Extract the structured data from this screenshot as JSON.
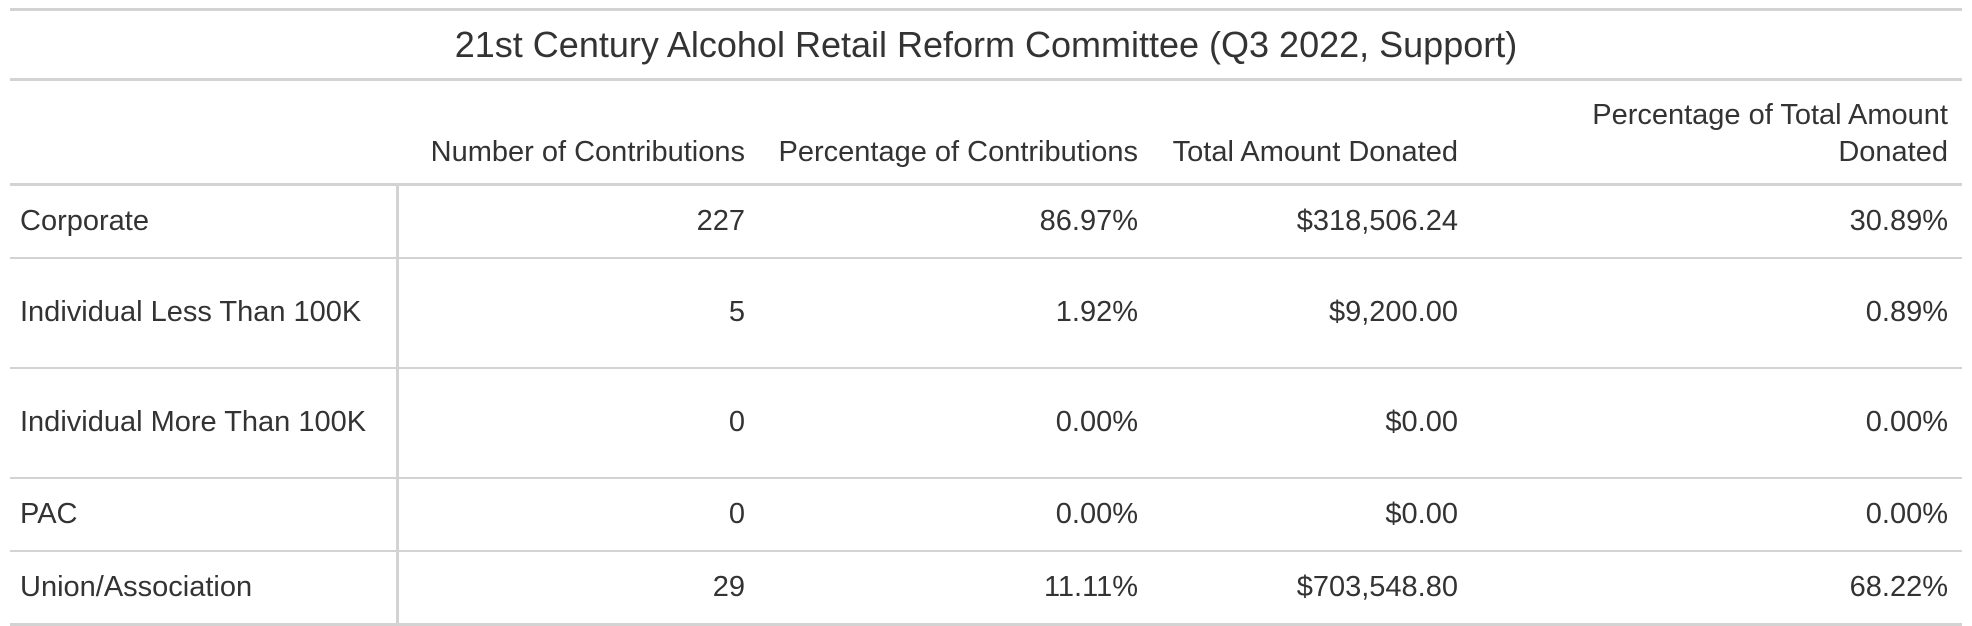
{
  "table": {
    "title": "21st Century Alcohol Retail Reform Committee (Q3 2022, Support)",
    "columns": [
      "Number of Contributions",
      "Percentage of Contributions",
      "Total Amount Donated",
      "Percentage of Total Amount Donated"
    ],
    "rows": [
      {
        "label": "Corporate",
        "cells": [
          "227",
          "86.97%",
          "$318,506.24",
          "30.89%"
        ]
      },
      {
        "label": "Individual Less Than 100K",
        "cells": [
          "5",
          "1.92%",
          "$9,200.00",
          "0.89%"
        ]
      },
      {
        "label": "Individual More Than 100K",
        "cells": [
          "0",
          "0.00%",
          "$0.00",
          "0.00%"
        ]
      },
      {
        "label": "PAC",
        "cells": [
          "0",
          "0.00%",
          "$0.00",
          "0.00%"
        ]
      },
      {
        "label": "Union/Association",
        "cells": [
          "29",
          "11.11%",
          "$703,548.80",
          "68.22%"
        ]
      }
    ]
  }
}
